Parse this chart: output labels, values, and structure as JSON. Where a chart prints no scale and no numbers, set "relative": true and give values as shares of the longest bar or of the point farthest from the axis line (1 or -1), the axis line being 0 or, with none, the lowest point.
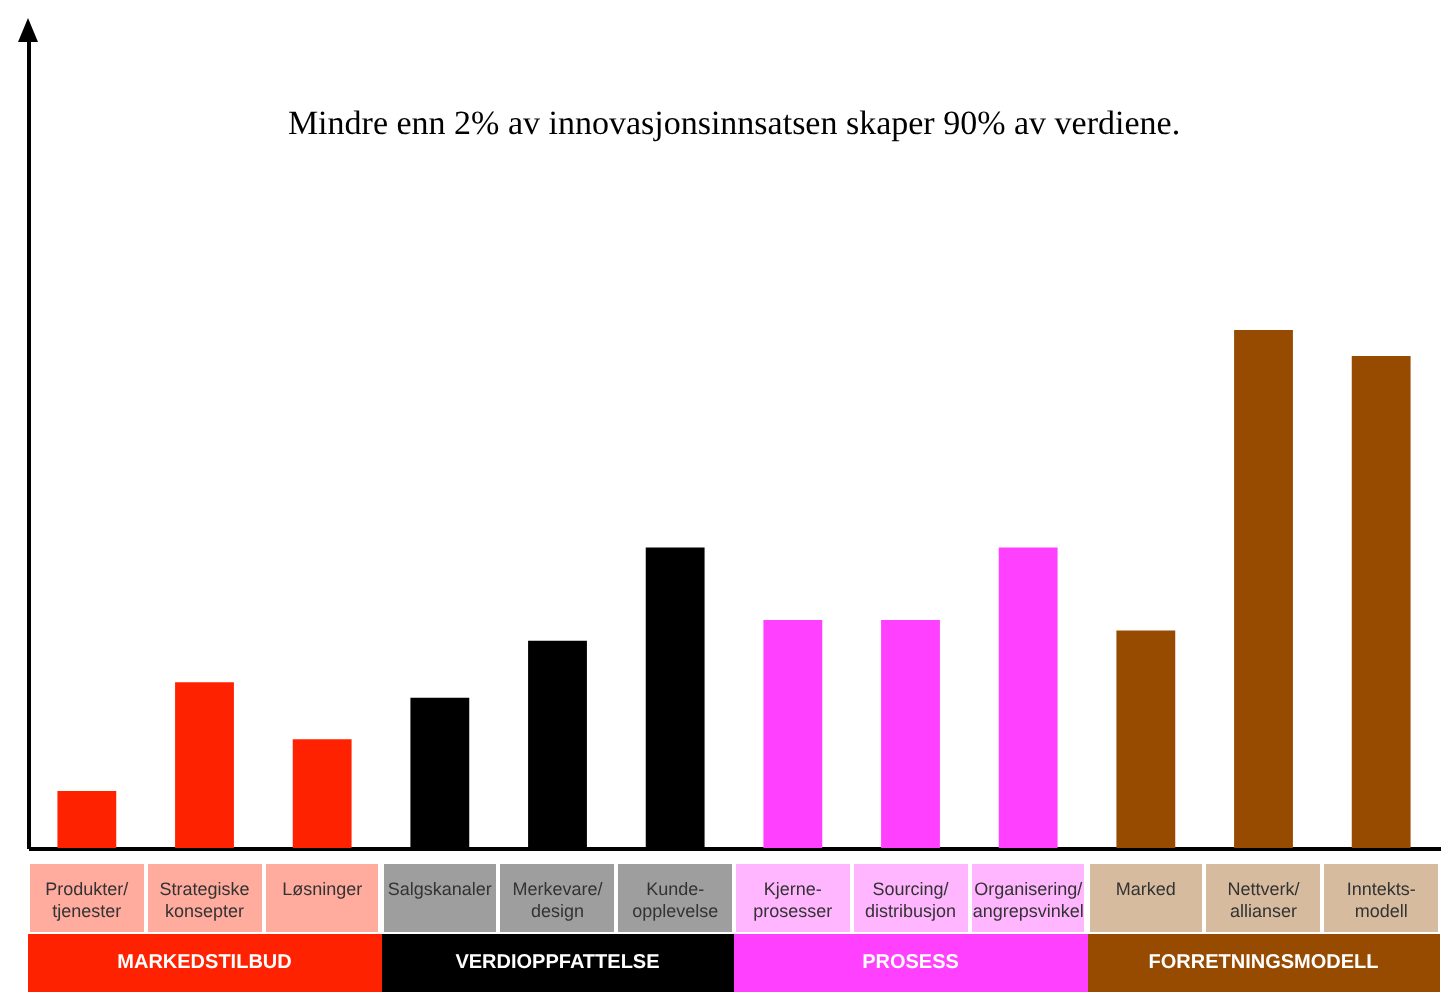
{
  "chart_data": {
    "type": "bar",
    "relative": true,
    "title": "Mindre enn 2% av innovasjonsinnsatsen skaper 90% av verdiene.",
    "categories": [
      "Produkter/\ntjenester",
      "Strategiske\nkonsepter",
      "Løsninger",
      "Salgskanaler",
      "Merkevare/\ndesign",
      "Kunde-\nopplevelse",
      "Kjerne-\nprosesser",
      "Sourcing/\ndistribusjon",
      "Organisering/\nangrepsvinkel",
      "Marked",
      "Nettverk/\nallianser",
      "Inntekts-\nmodell"
    ],
    "values": [
      0.11,
      0.32,
      0.21,
      0.29,
      0.4,
      0.58,
      0.44,
      0.44,
      0.58,
      0.42,
      1,
      0.95
    ],
    "colors": [
      "#ff2200",
      "#ff2200",
      "#ff2200",
      "#000000",
      "#000000",
      "#000000",
      "#ff40ff",
      "#ff40ff",
      "#ff40ff",
      "#964b00",
      "#964b00",
      "#964b00"
    ],
    "annotations": [
      "MARKEDSTILBUD",
      "VERDIOPPFATTELSE",
      "PROSESS",
      "FORRETNINGSMODELL"
    ]
  }
}
